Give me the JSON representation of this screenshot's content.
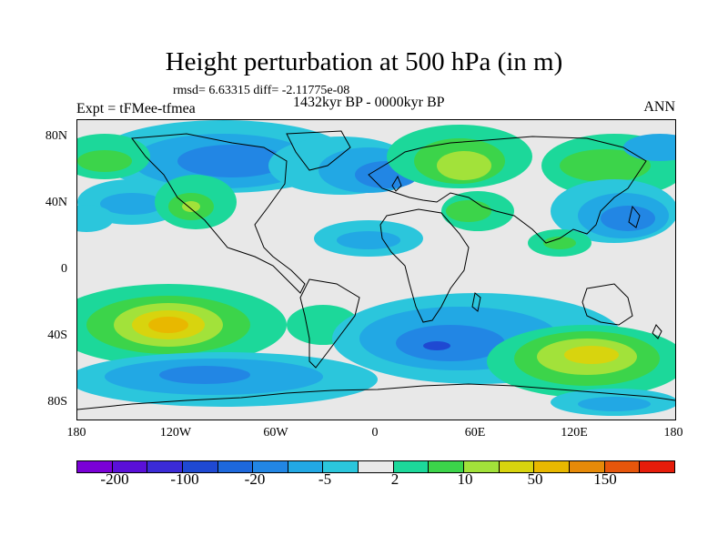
{
  "title": "Height perturbation at 500 hPa (in m)",
  "stats": "rmsd= 6.63315 diff= -2.11775e-08",
  "experiment": "Expt = tFMee-tfmea",
  "period": "1432kyr BP - 0000kyr BP",
  "season": "ANN",
  "axes": {
    "y_ticks": [
      "80N",
      "40N",
      "0",
      "40S",
      "80S"
    ],
    "x_ticks": [
      "180",
      "120W",
      "60W",
      "0",
      "60E",
      "120E",
      "180"
    ]
  },
  "colorbar": {
    "colors": [
      "#7a00d6",
      "#5a10d8",
      "#3b2bd6",
      "#1f49d2",
      "#1d68dc",
      "#2286e4",
      "#22a8e4",
      "#2bc6dc",
      "#e8e8e8",
      "#1cd89a",
      "#3cd44a",
      "#a2e23a",
      "#d8d40e",
      "#e8b800",
      "#e68a08",
      "#e6560c",
      "#e61c0a"
    ],
    "labels": [
      "-200",
      "-100",
      "-20",
      "-5",
      "2",
      "10",
      "50",
      "150"
    ]
  },
  "fill_colors": {
    "ocean_neutral": "#e8e8e8",
    "blue_dark": "#1f49d2",
    "blue": "#2286e4",
    "blue_light": "#22a8e4",
    "cyan": "#2bc6dc",
    "green_teal": "#1cd89a",
    "green": "#3cd44a",
    "yellow_green": "#a2e23a",
    "yellow": "#d8d40e",
    "orange_yellow": "#e8b800"
  }
}
